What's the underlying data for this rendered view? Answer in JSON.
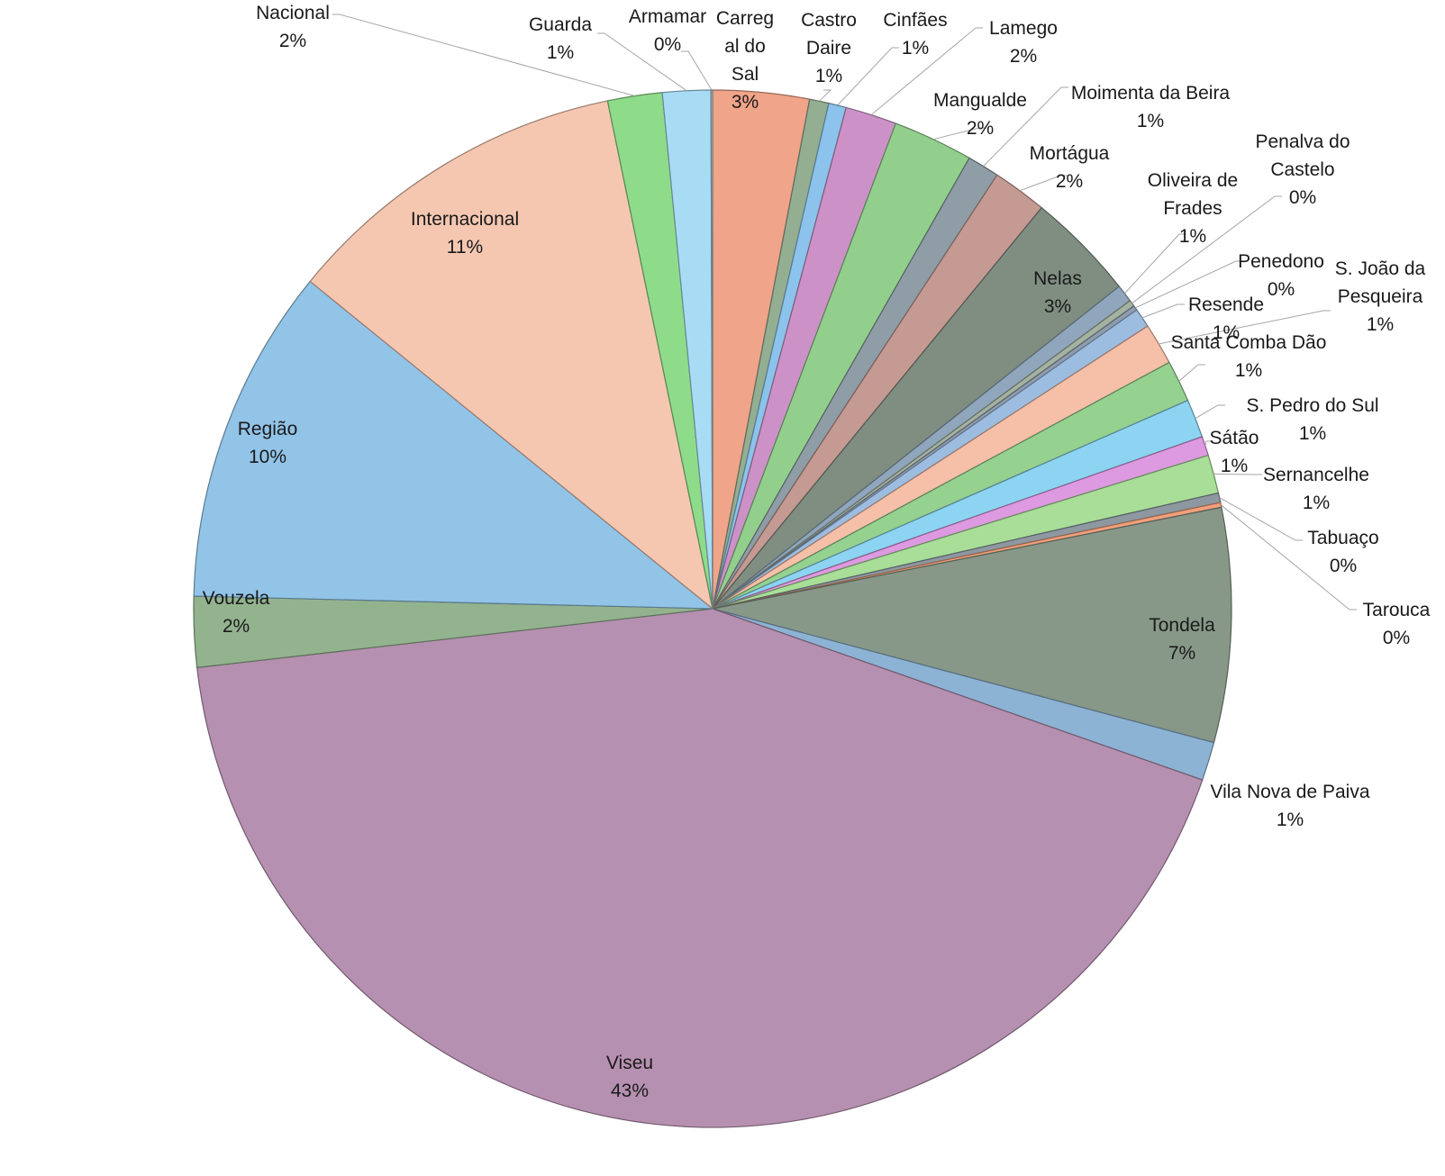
{
  "chart_data": {
    "type": "pie",
    "title": "",
    "slices": [
      {
        "name": "Carregal do Sal",
        "label_lines": [
          "Carreg",
          "al do",
          "Sal"
        ],
        "percent_label": "3%",
        "value": 3.0,
        "color": "#f0a489"
      },
      {
        "name": "Castro Daire",
        "label_lines": [
          "Castro",
          "Daire"
        ],
        "percent_label": "1%",
        "value": 0.6,
        "color": "#93ae91"
      },
      {
        "name": "Cinfães",
        "label_lines": [
          "Cinfães"
        ],
        "percent_label": "1%",
        "value": 0.55,
        "color": "#8cc3ec"
      },
      {
        "name": "Lamego",
        "label_lines": [
          "Lamego"
        ],
        "percent_label": "2%",
        "value": 1.6,
        "color": "#cc92c8"
      },
      {
        "name": "Mangualde",
        "label_lines": [
          "Mangualde"
        ],
        "percent_label": "2%",
        "value": 2.5,
        "color": "#93cf8c"
      },
      {
        "name": "Moimenta da Beira",
        "label_lines": [
          "Moimenta da Beira"
        ],
        "percent_label": "1%",
        "value": 1.0,
        "color": "#8e9da6"
      },
      {
        "name": "Mortágua",
        "label_lines": [
          "Mortágua"
        ],
        "percent_label": "2%",
        "value": 1.7,
        "color": "#c49a92"
      },
      {
        "name": "Nelas",
        "label_lines": [
          "Nelas"
        ],
        "percent_label": "3%",
        "value": 3.4,
        "color": "#7f8e81"
      },
      {
        "name": "Oliveira de Frades",
        "label_lines": [
          "Oliveira de",
          "Frades"
        ],
        "percent_label": "1%",
        "value": 0.55,
        "color": "#8fa6bd"
      },
      {
        "name": "Penalva do Castelo",
        "label_lines": [
          "Penalva do",
          "Castelo"
        ],
        "percent_label": "0%",
        "value": 0.2,
        "color": "#a4b3a0"
      },
      {
        "name": "Penedono",
        "label_lines": [
          "Penedono"
        ],
        "percent_label": "0%",
        "value": 0.15,
        "color": "#8f9cae"
      },
      {
        "name": "Resende",
        "label_lines": [
          "Resende"
        ],
        "percent_label": "1%",
        "value": 0.6,
        "color": "#9dbde0"
      },
      {
        "name": "S. João da Pesqueira",
        "label_lines": [
          "S. João da",
          "Pesqueira"
        ],
        "percent_label": "1%",
        "value": 1.3,
        "color": "#f5bfa8"
      },
      {
        "name": "Santa Comba Dão",
        "label_lines": [
          "Santa Comba Dão"
        ],
        "percent_label": "1%",
        "value": 1.3,
        "color": "#95d18f"
      },
      {
        "name": "S. Pedro do Sul",
        "label_lines": [
          "S. Pedro do Sul"
        ],
        "percent_label": "1%",
        "value": 1.2,
        "color": "#8cd4f2"
      },
      {
        "name": "Sátão",
        "label_lines": [
          "Sátão"
        ],
        "percent_label": "1%",
        "value": 0.6,
        "color": "#dd9ae0"
      },
      {
        "name": "Sernancelhe",
        "label_lines": [
          "Sernancelhe"
        ],
        "percent_label": "1%",
        "value": 1.2,
        "color": "#a8de98"
      },
      {
        "name": "Tabuaço",
        "label_lines": [
          "Tabuaço"
        ],
        "percent_label": "0%",
        "value": 0.3,
        "color": "#8d98a1"
      },
      {
        "name": "Tarouca",
        "label_lines": [
          "Tarouca"
        ],
        "percent_label": "0%",
        "value": 0.15,
        "color": "#f0a07a"
      },
      {
        "name": "Tondela",
        "label_lines": [
          "Tondela"
        ],
        "percent_label": "7%",
        "value": 7.3,
        "color": "#889888"
      },
      {
        "name": "Vila Nova de Paiva",
        "label_lines": [
          "Vila Nova de Paiva"
        ],
        "percent_label": "1%",
        "value": 1.2,
        "color": "#8db3d4"
      },
      {
        "name": "Viseu",
        "label_lines": [
          "Viseu"
        ],
        "percent_label": "43%",
        "value": 42.9,
        "color": "#b690b0"
      },
      {
        "name": "Vouzela",
        "label_lines": [
          "Vouzela"
        ],
        "percent_label": "2%",
        "value": 2.2,
        "color": "#93b38f"
      },
      {
        "name": "Região",
        "label_lines": [
          "Região"
        ],
        "percent_label": "10%",
        "value": 10.5,
        "color": "#92c4e8"
      },
      {
        "name": "Internacional",
        "label_lines": [
          "Internacional"
        ],
        "percent_label": "11%",
        "value": 10.9,
        "color": "#f5c7b1"
      },
      {
        "name": "Nacional",
        "label_lines": [
          "Nacional"
        ],
        "percent_label": "2%",
        "value": 1.7,
        "color": "#8edc8a"
      },
      {
        "name": "Guarda",
        "label_lines": [
          "Guarda"
        ],
        "percent_label": "1%",
        "value": 1.5,
        "color": "#a8dcf4"
      },
      {
        "name": "Armamar",
        "label_lines": [
          "Armamar"
        ],
        "percent_label": "0%",
        "value": 0.05,
        "color": "#b0c8d0"
      }
    ],
    "legend": "none",
    "data_labels": "category name and percentage"
  }
}
